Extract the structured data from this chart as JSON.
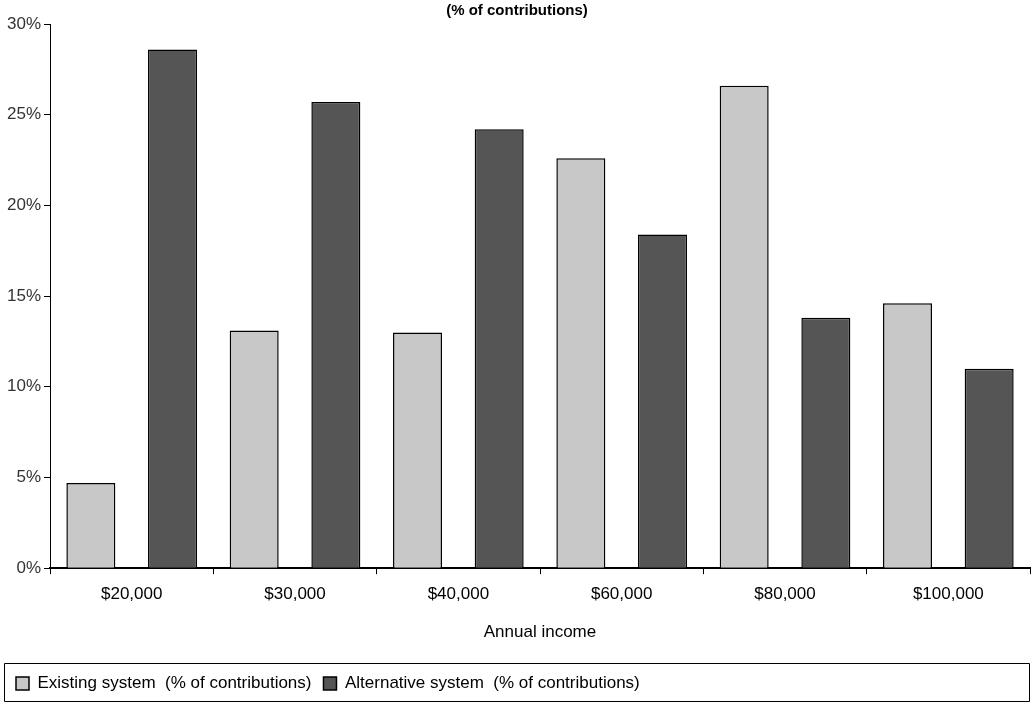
{
  "chart_data": {
    "type": "bar",
    "title": "(% of contributions)",
    "xlabel": "Annual income",
    "categories": [
      "$20,000",
      "$30,000",
      "$40,000",
      "$60,000",
      "$80,000",
      "$100,000"
    ],
    "series": [
      {
        "name": "Existing system  (% of contributions)",
        "color": "#c8c8c8",
        "values": [
          4.7,
          13.1,
          13.0,
          22.6,
          26.6,
          14.6
        ]
      },
      {
        "name": "Alternative system  (% of contributions)",
        "color": "#555555",
        "values": [
          28.6,
          25.7,
          24.2,
          18.4,
          13.8,
          11.0
        ]
      }
    ],
    "ylim": [
      0,
      30
    ],
    "yticks": [
      {
        "value": 0,
        "label": "0%"
      },
      {
        "value": 5,
        "label": "5%"
      },
      {
        "value": 10,
        "label": "10%"
      },
      {
        "value": 15,
        "label": "15%"
      },
      {
        "value": 20,
        "label": "20%"
      },
      {
        "value": 25,
        "label": "25%"
      },
      {
        "value": 30,
        "label": "30%"
      }
    ],
    "grid": false,
    "legend": "bottom"
  }
}
